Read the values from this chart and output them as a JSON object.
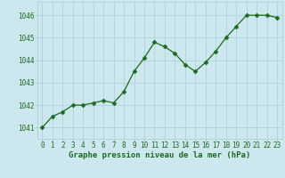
{
  "x": [
    0,
    1,
    2,
    3,
    4,
    5,
    6,
    7,
    8,
    9,
    10,
    11,
    12,
    13,
    14,
    15,
    16,
    17,
    18,
    19,
    20,
    21,
    22,
    23
  ],
  "y": [
    1041.0,
    1041.5,
    1041.7,
    1042.0,
    1042.0,
    1042.1,
    1042.2,
    1042.1,
    1042.6,
    1043.5,
    1044.1,
    1044.8,
    1044.6,
    1044.3,
    1043.8,
    1043.5,
    1043.9,
    1044.4,
    1045.0,
    1045.5,
    1046.0,
    1046.0,
    1046.0,
    1045.9
  ],
  "title": "Graphe pression niveau de la mer (hPa)",
  "ylim_min": 1040.5,
  "ylim_max": 1046.6,
  "yticks": [
    1041,
    1042,
    1043,
    1044,
    1045,
    1046
  ],
  "line_color": "#1a6b1a",
  "marker_color": "#1a6b1a",
  "bg_color": "#cce8ee",
  "grid_color": "#a8cfd6",
  "title_color": "#1a6b1a",
  "title_fontsize": 6.5,
  "tick_label_color": "#1a6b1a",
  "tick_fontsize": 5.5
}
